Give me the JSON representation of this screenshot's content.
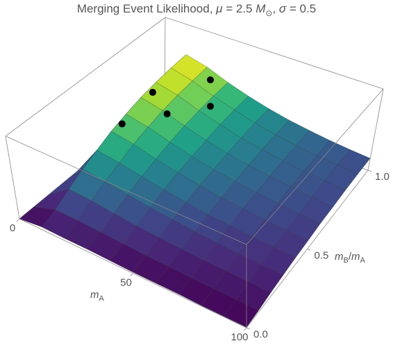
{
  "chart_data": {
    "type": "surface3d",
    "title_parts": [
      "Merging Event Likelihood, ",
      "μ",
      " = 2.5 ",
      "M",
      "⊙",
      ", ",
      "σ",
      " = 0.5"
    ],
    "x_label_parts": [
      "m",
      "A"
    ],
    "y_label_parts": [
      "m",
      "B",
      "/",
      "m",
      "A"
    ],
    "xlim": [
      0,
      100
    ],
    "xticks": [
      0,
      50,
      100
    ],
    "ylim": [
      0,
      1
    ],
    "yticks": [
      {
        "value": 0,
        "label": "0.0"
      },
      0.5,
      {
        "value": 1,
        "label": "1.0"
      }
    ],
    "zlim": [
      0,
      1.5
    ],
    "x": [
      0,
      10,
      20,
      30,
      40,
      50,
      60,
      70,
      80,
      90,
      100
    ],
    "y": [
      0,
      0.1,
      0.2,
      0.3,
      0.4,
      0.5,
      0.6,
      0.7,
      0.8,
      0.9,
      1
    ],
    "z": [
      [
        0,
        0,
        0,
        0,
        0,
        0,
        0,
        0,
        0,
        0,
        0
      ],
      [
        0.05,
        0.14,
        0.29,
        0.43,
        0.55,
        0.67,
        0.76,
        0.84,
        0.89,
        0.93,
        0.95
      ],
      [
        0.04,
        0.13,
        0.26,
        0.38,
        0.49,
        0.6,
        0.68,
        0.75,
        0.8,
        0.83,
        0.85
      ],
      [
        0.04,
        0.11,
        0.21,
        0.32,
        0.41,
        0.49,
        0.56,
        0.62,
        0.66,
        0.69,
        0.7
      ],
      [
        0.03,
        0.09,
        0.17,
        0.26,
        0.34,
        0.41,
        0.46,
        0.51,
        0.55,
        0.57,
        0.58
      ],
      [
        0.02,
        0.07,
        0.14,
        0.22,
        0.28,
        0.34,
        0.38,
        0.42,
        0.45,
        0.47,
        0.48
      ],
      [
        0.02,
        0.06,
        0.12,
        0.18,
        0.23,
        0.28,
        0.32,
        0.35,
        0.38,
        0.39,
        0.4
      ],
      [
        0.02,
        0.05,
        0.1,
        0.15,
        0.2,
        0.24,
        0.27,
        0.3,
        0.32,
        0.33,
        0.34
      ],
      [
        0.01,
        0.04,
        0.09,
        0.13,
        0.17,
        0.2,
        0.23,
        0.26,
        0.27,
        0.28,
        0.29
      ],
      [
        0.01,
        0.04,
        0.08,
        0.11,
        0.15,
        0.18,
        0.2,
        0.22,
        0.24,
        0.25,
        0.25
      ],
      [
        0.01,
        0.03,
        0.07,
        0.1,
        0.13,
        0.15,
        0.18,
        0.19,
        0.21,
        0.22,
        0.22
      ]
    ],
    "colormap": "viridis",
    "mesh": true,
    "points": {
      "x": [
        8,
        12,
        22,
        25,
        32
      ],
      "y": [
        0.6,
        0.75,
        0.7,
        0.95,
        0.85
      ],
      "z": [
        0.55,
        0.85,
        0.72,
        0.8,
        0.65
      ],
      "color": "#000000"
    }
  }
}
